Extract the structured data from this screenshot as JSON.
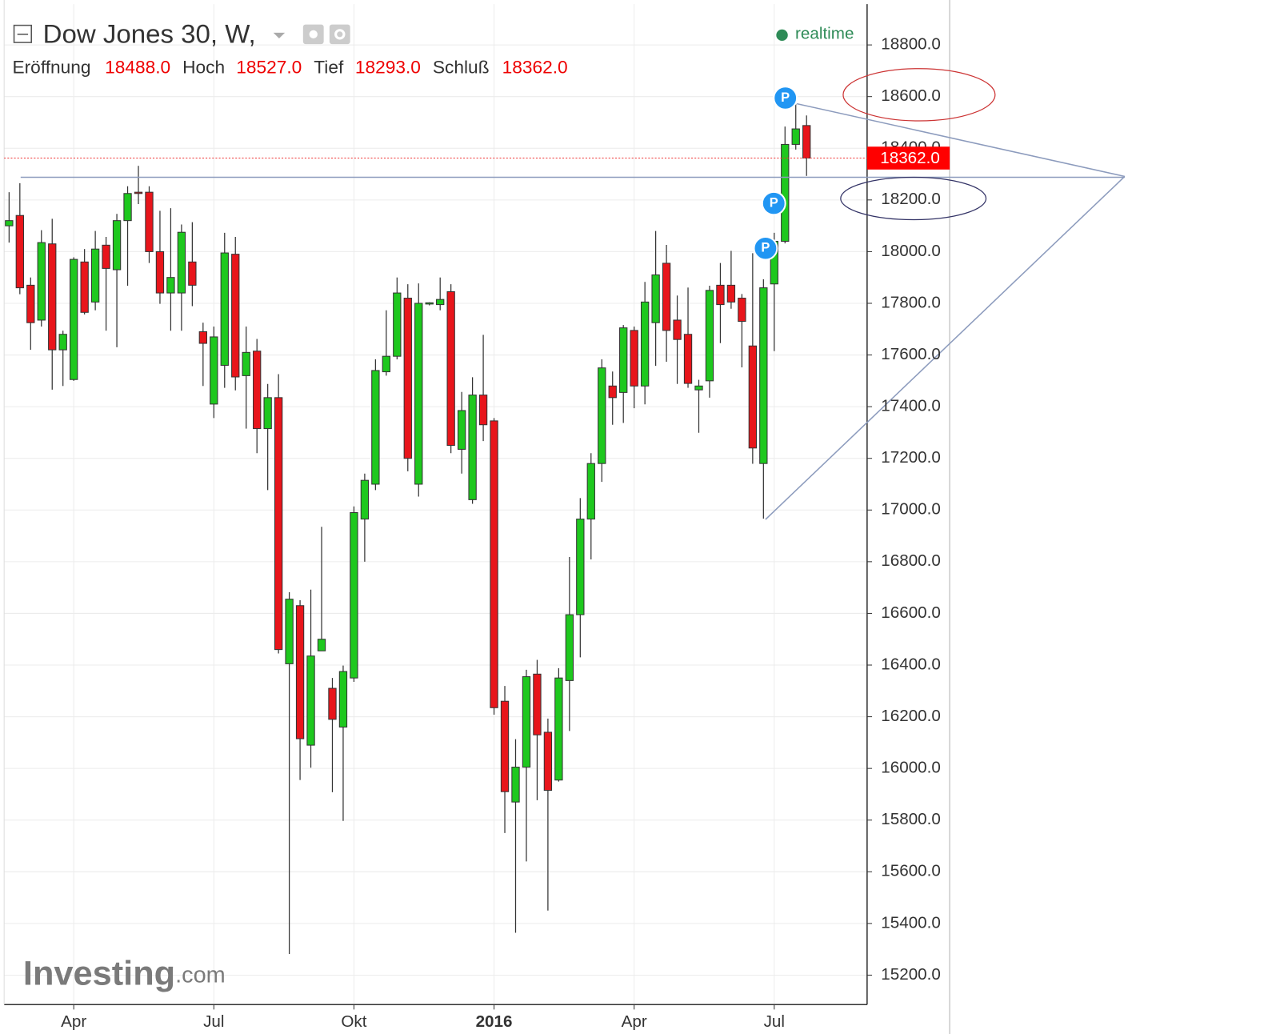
{
  "chart_data": {
    "type": "candlestick",
    "title": "Dow Jones 30, W,",
    "ohlc_header": [
      {
        "name": "Eröffnung",
        "label": "18488.0"
      },
      {
        "name": "Hoch",
        "label": "18527.0"
      },
      {
        "name": "Tief",
        "label": "18293.0"
      },
      {
        "name": "Schluß",
        "label": "18362.0"
      }
    ],
    "status": "realtime",
    "logo": [
      "Investing",
      ".com"
    ],
    "markers": [
      "P",
      "P",
      "P"
    ],
    "price_label": {
      "value": 18362,
      "label": "18362.0"
    },
    "up_color": "#1ec81e",
    "down_color": "#e8151b",
    "categories": [
      null,
      null,
      null,
      null,
      null,
      null,
      null,
      null,
      null,
      null,
      null,
      null,
      null,
      null,
      null,
      null,
      null,
      null,
      null,
      null,
      null,
      null,
      null,
      null,
      null,
      null,
      null,
      null,
      null,
      null,
      null,
      null,
      null,
      null,
      null,
      null,
      null,
      null,
      null,
      null,
      null,
      null,
      null,
      null,
      null,
      null,
      null,
      null,
      null,
      null,
      null,
      null,
      null,
      null,
      null,
      null,
      null,
      null,
      null,
      null,
      null,
      null,
      null,
      null,
      null,
      null,
      null,
      null,
      null,
      null,
      null,
      null,
      null,
      null,
      null
    ],
    "open": [
      18100,
      18140,
      17870,
      17735,
      18030,
      17620,
      17505,
      17960,
      17805,
      18025,
      17930,
      18120,
      18230,
      18230,
      18000,
      17840,
      17840,
      17960,
      17690,
      17410,
      17560,
      17990,
      17520,
      17615,
      17315,
      17435,
      16405,
      16630,
      16090,
      16455,
      16310,
      16160,
      16350,
      16965,
      17100,
      17535,
      17595,
      17820,
      17100,
      17800,
      17795,
      17845,
      17235,
      17040,
      17445,
      17345,
      16260,
      15870,
      16005,
      16365,
      16140,
      15955,
      16340,
      16595,
      16965,
      17180,
      17480,
      17455,
      17695,
      17480,
      17725,
      17955,
      17735,
      17680,
      17465,
      17500,
      17870,
      17870,
      17820,
      17635,
      17180,
      17875,
      18040,
      18415,
      18488
    ],
    "high": [
      18230,
      18265,
      17900,
      18083,
      18127,
      17694,
      17978,
      18010,
      18080,
      18057,
      18146,
      18253,
      18332,
      18253,
      18158,
      18168,
      18105,
      18114,
      17725,
      17710,
      18073,
      18057,
      17710,
      17662,
      17488,
      17526,
      16682,
      16651,
      16692,
      16935,
      16350,
      16398,
      17014,
      17141,
      17583,
      17773,
      17900,
      17874,
      17877,
      17804,
      17900,
      17874,
      17457,
      17514,
      17678,
      17356,
      16319,
      16113,
      16382,
      16420,
      16193,
      16388,
      16818,
      17046,
      17220,
      17583,
      17536,
      17716,
      17710,
      17883,
      18080,
      18026,
      17830,
      17861,
      17504,
      17868,
      17956,
      18003,
      17836,
      17994,
      17893,
      18073,
      18484,
      18579,
      18527
    ],
    "low": [
      18035,
      17835,
      17620,
      17710,
      17466,
      17480,
      17500,
      17757,
      17773,
      17694,
      17630,
      17868,
      18184,
      17956,
      17798,
      17694,
      17694,
      17789,
      17480,
      17356,
      17473,
      17463,
      17315,
      17220,
      17077,
      16445,
      15282,
      15955,
      16003,
      16455,
      15908,
      15797,
      16335,
      16800,
      17077,
      17520,
      17583,
      17150,
      17052,
      17792,
      17773,
      17220,
      17141,
      17024,
      17267,
      16208,
      15750,
      15364,
      15640,
      15877,
      15450,
      15949,
      16145,
      16430,
      16809,
      17109,
      17330,
      17337,
      17394,
      17409,
      17558,
      17574,
      17488,
      17473,
      17299,
      17435,
      17646,
      17779,
      17552,
      17179,
      16967,
      17615,
      18032,
      18395,
      18293
    ],
    "close": [
      18120,
      17860,
      17725,
      18035,
      17620,
      17680,
      17970,
      17765,
      18010,
      17935,
      18120,
      18225,
      18225,
      18000,
      17840,
      17900,
      18075,
      17870,
      17645,
      17670,
      17995,
      17515,
      17610,
      17315,
      17435,
      16460,
      16655,
      16115,
      16435,
      16500,
      16190,
      16375,
      16990,
      17115,
      17540,
      17595,
      17840,
      17200,
      17800,
      17802,
      17815,
      17250,
      17385,
      17445,
      17330,
      16235,
      15910,
      16005,
      16355,
      16130,
      15915,
      16350,
      16595,
      16965,
      17180,
      17550,
      17435,
      17705,
      17480,
      17805,
      17910,
      17695,
      17660,
      17490,
      17480,
      17850,
      17795,
      17805,
      17730,
      17240,
      17860,
      18040,
      18415,
      18475,
      18362
    ],
    "xticks": [
      {
        "value": 6,
        "label": "Apr"
      },
      {
        "value": 19,
        "label": "Jul"
      },
      {
        "value": 32,
        "label": "Okt"
      },
      {
        "value": 45,
        "label": "2016"
      },
      {
        "value": 58,
        "label": "Apr"
      },
      {
        "value": 71,
        "label": "Jul"
      }
    ],
    "ylim": [
      15086,
      18958
    ],
    "yticks": [
      {
        "value": 15200,
        "label": "15200.0"
      },
      {
        "value": 15400,
        "label": "15400.0"
      },
      {
        "value": 15600,
        "label": "15600.0"
      },
      {
        "value": 15800,
        "label": "15800.0"
      },
      {
        "value": 16000,
        "label": "16000.0"
      },
      {
        "value": 16200,
        "label": "16200.0"
      },
      {
        "value": 16400,
        "label": "16400.0"
      },
      {
        "value": 16600,
        "label": "16600.0"
      },
      {
        "value": 16800,
        "label": "16800.0"
      },
      {
        "value": 17000,
        "label": "17000.0"
      },
      {
        "value": 17200,
        "label": "17200.0"
      },
      {
        "value": 17400,
        "label": "17400.0"
      },
      {
        "value": 17600,
        "label": "17600.0"
      },
      {
        "value": 17800,
        "label": "17800.0"
      },
      {
        "value": 18000,
        "label": "18000.0"
      },
      {
        "value": 18200,
        "label": "18200.0"
      },
      {
        "value": 18400,
        "label": "18400.0"
      },
      {
        "value": 18600,
        "label": "18600.0"
      },
      {
        "value": 18800,
        "label": "18800.0"
      }
    ],
    "grid": true
  }
}
